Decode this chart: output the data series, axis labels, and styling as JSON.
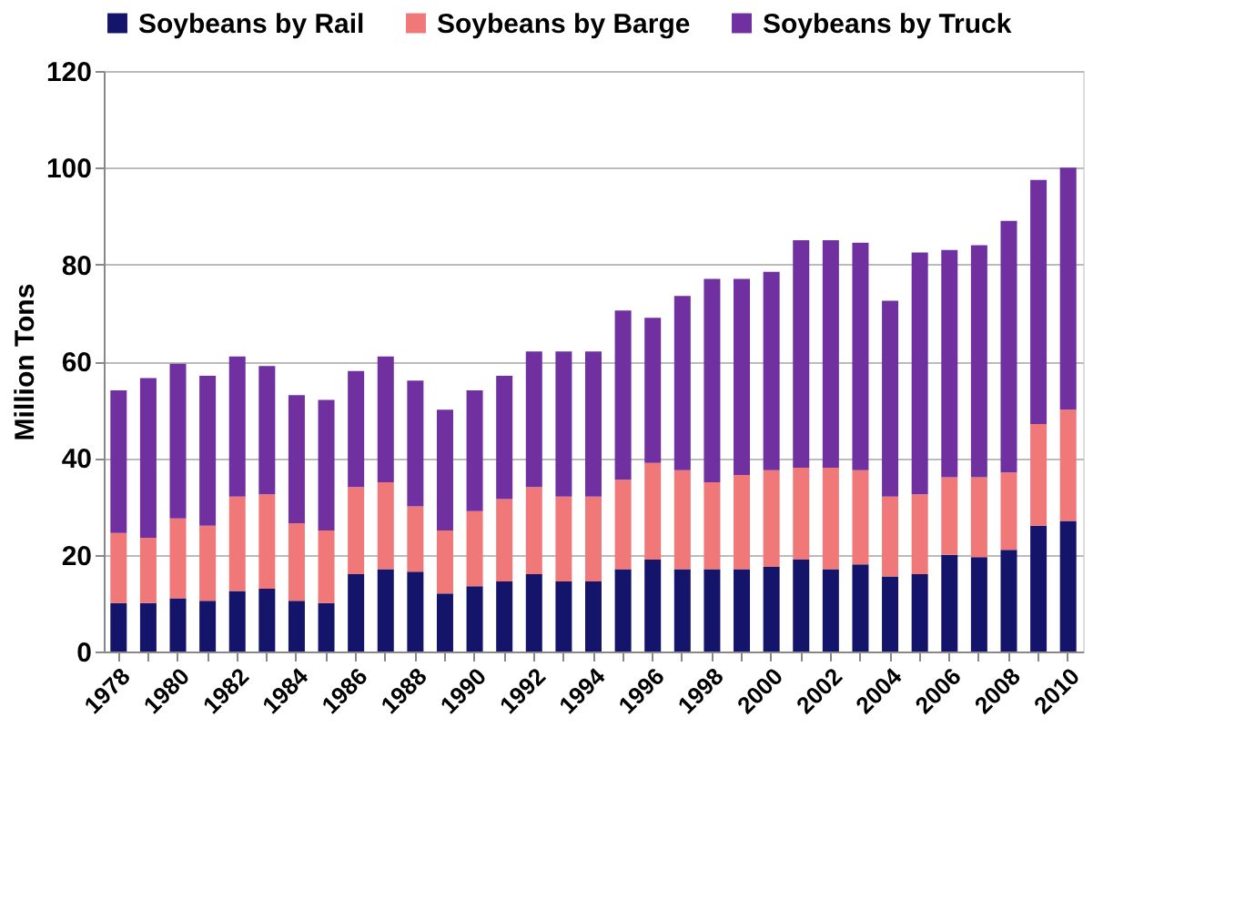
{
  "chart_data": {
    "type": "bar",
    "stacked": true,
    "ylabel": "Million Tons",
    "categories": [
      "1978",
      null,
      "1980",
      null,
      "1982",
      null,
      "1984",
      null,
      "1986",
      null,
      "1988",
      null,
      "1990",
      null,
      "1992",
      null,
      "1994",
      null,
      "1996",
      null,
      "1998",
      null,
      "2000",
      null,
      "2002",
      null,
      "2004",
      null,
      "2006",
      null,
      "2008",
      null,
      "2010"
    ],
    "series": [
      {
        "name": "Soybeans by Rail",
        "color": "#14146b",
        "values": [
          10,
          10,
          11,
          10.5,
          12.5,
          13,
          10.5,
          10,
          16,
          17,
          16.5,
          12,
          13.5,
          14.5,
          16,
          14.5,
          14.5,
          17,
          19,
          17,
          17,
          17,
          17.5,
          19,
          17,
          18,
          15.5,
          16,
          20,
          19.5,
          21,
          26,
          27
        ]
      },
      {
        "name": "Soybeans by Barge",
        "color": "#f07878",
        "values": [
          14.5,
          13.5,
          16.5,
          15.5,
          19.5,
          19.5,
          16,
          15,
          18,
          18,
          13.5,
          13,
          15.5,
          17,
          18,
          17.5,
          17.5,
          18.5,
          20,
          20.5,
          18,
          19.5,
          20,
          19,
          21,
          19.5,
          16.5,
          16.5,
          16,
          16.5,
          16,
          21,
          23
        ]
      },
      {
        "name": "Soybeans by Truck",
        "color": "#7030a0",
        "values": [
          29.5,
          33,
          32,
          31,
          29,
          26.5,
          26.5,
          27,
          24,
          26,
          26,
          25,
          25,
          25.5,
          28,
          30,
          30,
          35,
          30,
          36,
          42,
          40.5,
          41,
          47,
          47,
          47,
          40.5,
          50,
          47,
          48,
          52,
          50.5,
          50
        ]
      }
    ],
    "ylim": [
      0,
      120
    ],
    "yticks": [
      0,
      20,
      40,
      60,
      80,
      100,
      120
    ],
    "grid": "y",
    "legend": "top"
  }
}
